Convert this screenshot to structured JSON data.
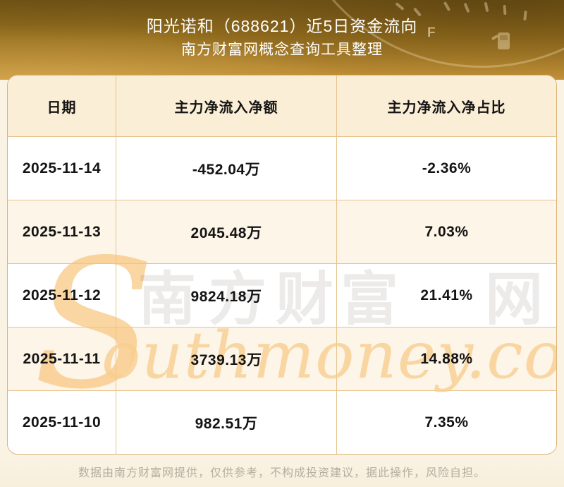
{
  "banner": {
    "title": "阳光诺和（688621）近5日资金流向",
    "subtitle": "南方财富网概念查询工具整理",
    "gauge_f_label": "F"
  },
  "table": {
    "columns": [
      "日期",
      "主力净流入净额",
      "主力净流入净占比"
    ],
    "rows": [
      {
        "date": "2025-11-14",
        "net_inflow": "-452.04万",
        "net_ratio": "-2.36%"
      },
      {
        "date": "2025-11-13",
        "net_inflow": "2045.48万",
        "net_ratio": "7.03%"
      },
      {
        "date": "2025-11-12",
        "net_inflow": "9824.18万",
        "net_ratio": "21.41%"
      },
      {
        "date": "2025-11-11",
        "net_inflow": "3739.13万",
        "net_ratio": "14.88%"
      },
      {
        "date": "2025-11-10",
        "net_inflow": "982.51万",
        "net_ratio": "7.35%"
      }
    ]
  },
  "watermark": {
    "initial": "S",
    "cn_text": "南方财富网",
    "script_text": "outhmoney.com"
  },
  "footer": {
    "disclaimer": "数据由南方财富网提供，仅供参考，不构成投资建议，据此操作，风险自担。"
  },
  "colors": {
    "banner_gold_top": "#795a18",
    "banner_gold_bottom": "#c29138",
    "header_cell_bg": "#fbeed6",
    "row_alt_bg": "#fdf5e8",
    "table_border": "#e6c28b",
    "text": "#141414",
    "footer_text": "#b5ada0",
    "watermark_orange": "#f8ce8e"
  },
  "chart_data": {
    "type": "table",
    "title": "阳光诺和（688621）近5日资金流向",
    "subtitle": "南方财富网概念查询工具整理",
    "columns": [
      "日期",
      "主力净流入净额",
      "主力净流入净占比"
    ],
    "rows": [
      [
        "2025-11-14",
        "-452.04万",
        "-2.36%"
      ],
      [
        "2025-11-13",
        "2045.48万",
        "7.03%"
      ],
      [
        "2025-11-12",
        "9824.18万",
        "21.41%"
      ],
      [
        "2025-11-11",
        "3739.13万",
        "14.88%"
      ],
      [
        "2025-11-10",
        "982.51万",
        "7.35%"
      ]
    ],
    "dates": [
      "2025-11-14",
      "2025-11-13",
      "2025-11-12",
      "2025-11-11",
      "2025-11-10"
    ],
    "net_inflow_wan": [
      -452.04,
      2045.48,
      9824.18,
      3739.13,
      982.51
    ],
    "net_inflow_pct": [
      -2.36,
      7.03,
      21.41,
      14.88,
      7.35
    ]
  }
}
